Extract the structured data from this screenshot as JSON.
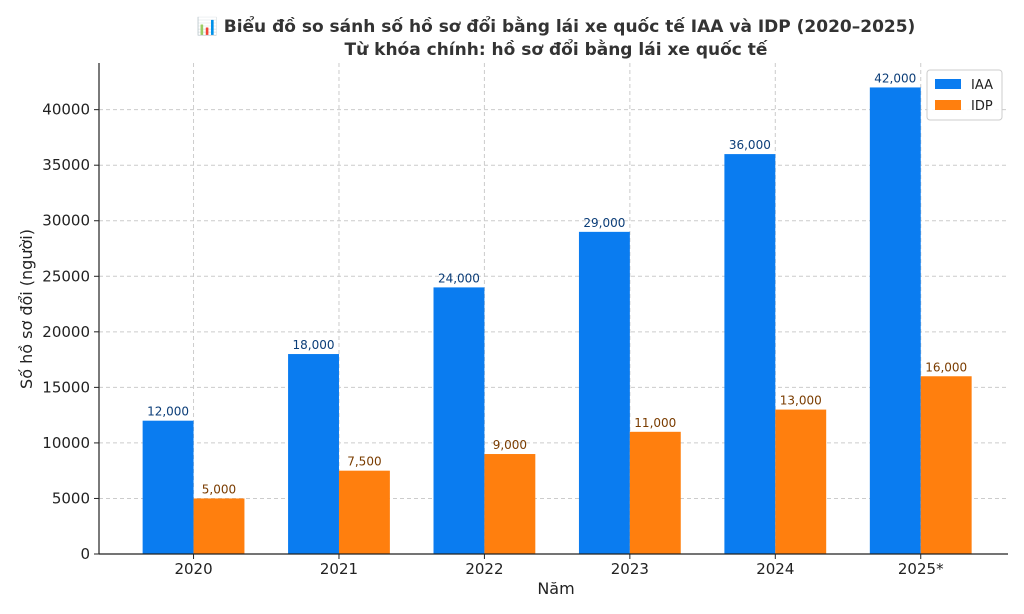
{
  "chart_data": {
    "type": "bar",
    "title": "📊 Biểu đồ so sánh số hồ sơ đổi bằng lái xe quốc tế IAA và IDP (2020–2025)",
    "subtitle": "Từ khóa chính: hồ sơ đổi bằng lái xe quốc tế",
    "xlabel": "Năm",
    "ylabel": "Số hồ sơ đổi (người)",
    "categories": [
      "2020",
      "2021",
      "2022",
      "2023",
      "2024",
      "2025*"
    ],
    "series": [
      {
        "name": "IAA",
        "color": "#0a7cf0",
        "label_color": "#0b3d78",
        "values": [
          12000,
          18000,
          24000,
          29000,
          36000,
          42000
        ],
        "labels": [
          "12,000",
          "18,000",
          "24,000",
          "29,000",
          "36,000",
          "42,000"
        ]
      },
      {
        "name": "IDP",
        "color": "#ff7f0e",
        "label_color": "#7a3c00",
        "values": [
          5000,
          7500,
          9000,
          11000,
          13000,
          16000
        ],
        "labels": [
          "5,000",
          "7,500",
          "9,000",
          "11,000",
          "13,000",
          "16,000"
        ]
      }
    ],
    "ylim": [
      0,
      44200
    ],
    "yticks": [
      0,
      5000,
      10000,
      15000,
      20000,
      25000,
      30000,
      35000,
      40000
    ],
    "ytick_labels": [
      "0",
      "5000",
      "10000",
      "15000",
      "20000",
      "25000",
      "30000",
      "35000",
      "40000"
    ],
    "grid": true,
    "legend_position": "top-right"
  }
}
